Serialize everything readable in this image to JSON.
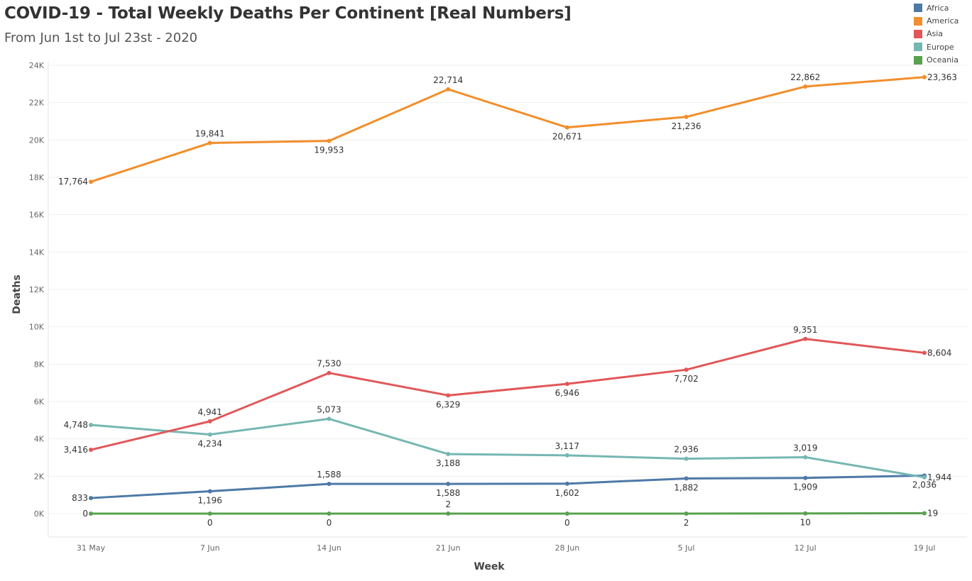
{
  "title": "COVID-19 - Total Weekly Deaths Per Continent [Real Numbers]",
  "subtitle": "From Jun 1st to Jul 23st - 2020",
  "chart_data": {
    "type": "line",
    "title": "COVID-19 - Total Weekly Deaths Per Continent [Real Numbers]",
    "subtitle": "From Jun 1st to Jul 23st - 2020",
    "xlabel": "Week",
    "ylabel": "Deaths",
    "categories": [
      "31 May",
      "7 Jun",
      "14 Jun",
      "21 Jun",
      "28 Jun",
      "5 Jul",
      "12 Jul",
      "19 Jul"
    ],
    "ylim": [
      0,
      24000
    ],
    "yticks": [
      0,
      2000,
      4000,
      6000,
      8000,
      10000,
      12000,
      14000,
      16000,
      18000,
      20000,
      22000,
      24000
    ],
    "ytick_labels": [
      "0K",
      "2K",
      "4K",
      "6K",
      "8K",
      "10K",
      "12K",
      "14K",
      "16K",
      "18K",
      "20K",
      "22K",
      "24K"
    ],
    "grid": true,
    "legend_position": "top-right",
    "series": [
      {
        "name": "Africa",
        "color": "#4e79a7",
        "values": [
          833,
          1196,
          1588,
          1588,
          1602,
          1882,
          1909,
          2036
        ],
        "labels": [
          "833",
          "1,196",
          "1,588",
          "1,588",
          "1,602",
          "1,882",
          "1,909",
          "2,036"
        ]
      },
      {
        "name": "America",
        "color": "#f28e2b",
        "values": [
          17764,
          19841,
          19953,
          22714,
          20671,
          21236,
          22862,
          23363
        ],
        "labels": [
          "17,764",
          "19,841",
          "19,953",
          "22,714",
          "20,671",
          "21,236",
          "22,862",
          "23,363"
        ]
      },
      {
        "name": "Asia",
        "color": "#e15759",
        "values": [
          3416,
          4941,
          7530,
          6329,
          6946,
          7702,
          9351,
          8604
        ],
        "labels": [
          "3,416",
          "4,941",
          "7,530",
          "6,329",
          "6,946",
          "7,702",
          "9,351",
          "8,604"
        ]
      },
      {
        "name": "Europe",
        "color": "#76b7b2",
        "values": [
          4748,
          4234,
          5073,
          3188,
          3117,
          2936,
          3019,
          1944
        ],
        "labels": [
          "4,748",
          "4,234",
          "5,073",
          "3,188",
          "3,117",
          "2,936",
          "3,019",
          "1,944"
        ]
      },
      {
        "name": "Oceania",
        "color": "#59a14f",
        "values": [
          0,
          0,
          0,
          2,
          0,
          2,
          10,
          19
        ],
        "labels": [
          "0",
          "0",
          "0",
          "2",
          "0",
          "2",
          "10",
          "19"
        ]
      }
    ]
  }
}
